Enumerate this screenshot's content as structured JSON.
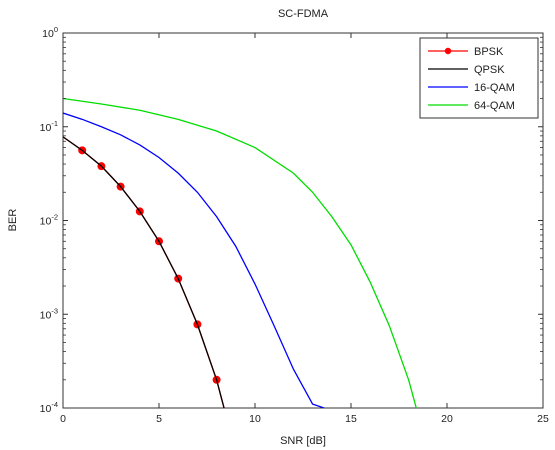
{
  "chart_data": {
    "type": "line",
    "title": "SC-FDMA",
    "xlabel": "SNR [dB]",
    "ylabel": "BER",
    "xlim": [
      0,
      25
    ],
    "ylim": [
      0.0001,
      1
    ],
    "yscale": "log",
    "grid": false,
    "legend_position": "top-right",
    "x_ticks": [
      0,
      5,
      10,
      15,
      20,
      25
    ],
    "y_ticks": [
      0.0001,
      0.001,
      0.01,
      0.1,
      1
    ],
    "y_tick_labels": [
      {
        "base": "10",
        "exp": "-4"
      },
      {
        "base": "10",
        "exp": "-3"
      },
      {
        "base": "10",
        "exp": "-2"
      },
      {
        "base": "10",
        "exp": "-1"
      },
      {
        "base": "10",
        "exp": "0"
      }
    ],
    "series": [
      {
        "name": "BPSK",
        "color": "#ff0000",
        "marker": "*",
        "x": [
          0,
          1,
          2,
          3,
          4,
          5,
          6,
          7,
          8,
          9,
          9.2
        ],
        "y": [
          0.078,
          0.056,
          0.038,
          0.023,
          0.0125,
          0.006,
          0.0024,
          0.00078,
          0.0002,
          3.35e-05,
          0.0001
        ]
      },
      {
        "name": "QPSK",
        "color": "#000000",
        "marker": "",
        "x": [
          0,
          1,
          2,
          3,
          4,
          5,
          6,
          7,
          8,
          9,
          9.2
        ],
        "y": [
          0.078,
          0.056,
          0.038,
          0.023,
          0.0125,
          0.006,
          0.0024,
          0.00078,
          0.0002,
          3.35e-05,
          0.0001
        ]
      },
      {
        "name": "16-QAM",
        "color": "#0000ff",
        "marker": "",
        "x": [
          0,
          1,
          2,
          3,
          4,
          5,
          6,
          7,
          8,
          9,
          10,
          11,
          12,
          13,
          13.6
        ],
        "y": [
          0.14,
          0.12,
          0.1,
          0.082,
          0.064,
          0.047,
          0.032,
          0.02,
          0.011,
          0.0053,
          0.0021,
          0.00075,
          0.00026,
          0.00011,
          0.0001
        ]
      },
      {
        "name": "64-QAM",
        "color": "#00dd00",
        "marker": "",
        "x": [
          0,
          2,
          4,
          6,
          8,
          10,
          12,
          13,
          14,
          15,
          16,
          17,
          18,
          18.4
        ],
        "y": [
          0.2,
          0.175,
          0.15,
          0.12,
          0.09,
          0.06,
          0.032,
          0.02,
          0.011,
          0.0055,
          0.0022,
          0.00075,
          0.0002,
          0.0001
        ]
      }
    ]
  }
}
